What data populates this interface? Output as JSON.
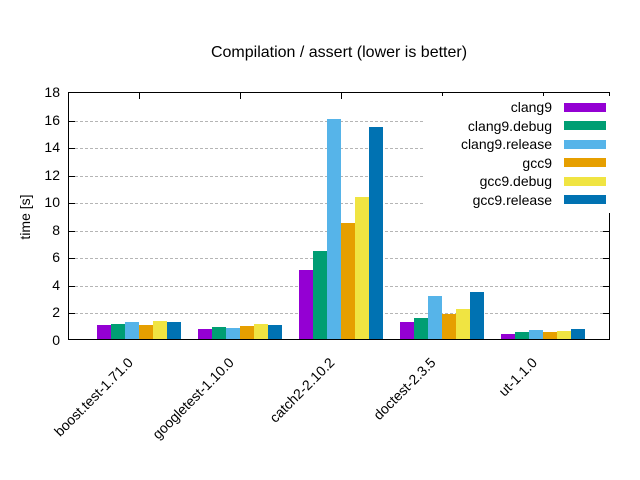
{
  "title": "Compilation / assert (lower is better)",
  "chart_data": {
    "type": "bar",
    "title": "Compilation / assert (lower is better)",
    "xlabel": "",
    "ylabel": "time [s]",
    "ylim": [
      0,
      18
    ],
    "ytick_step": 2,
    "grid": true,
    "legend_position": "top-right-inside",
    "categories": [
      "boost.test-1.71.0",
      "googletest-1.10.0",
      "catch2-2.10.2",
      "doctest-2.3.5",
      "ut-1.1.0"
    ],
    "series": [
      {
        "name": "clang9",
        "color": "#9400d3",
        "values": [
          1.0,
          0.75,
          5.0,
          1.25,
          0.35
        ]
      },
      {
        "name": "clang9.debug",
        "color": "#009e73",
        "values": [
          1.1,
          0.9,
          6.4,
          1.5,
          0.5
        ]
      },
      {
        "name": "clang9.release",
        "color": "#56b4e9",
        "values": [
          1.25,
          0.8,
          16.0,
          3.1,
          0.65
        ]
      },
      {
        "name": "gcc9",
        "color": "#e69f00",
        "values": [
          1.05,
          0.95,
          8.4,
          1.8,
          0.5
        ]
      },
      {
        "name": "gcc9.debug",
        "color": "#f0e442",
        "values": [
          1.3,
          1.1,
          10.3,
          2.15,
          0.6
        ]
      },
      {
        "name": "gcc9.release",
        "color": "#0072b2",
        "values": [
          1.2,
          1.0,
          15.4,
          3.4,
          0.75
        ]
      }
    ],
    "colors": {
      "grid": "#b5b5b5",
      "frame": "#000000",
      "text": "#000000"
    }
  }
}
